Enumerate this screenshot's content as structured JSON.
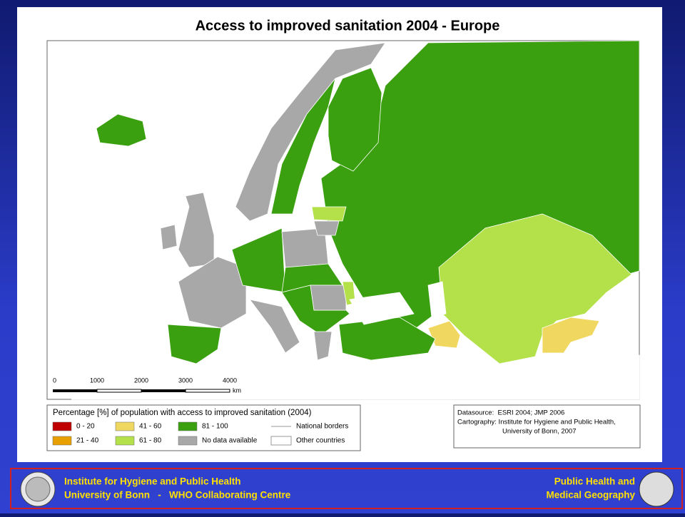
{
  "title": "Access to improved sanitation 2004 - Europe",
  "scale": {
    "labels": [
      "0",
      "1000",
      "2000",
      "3000",
      "4000"
    ],
    "unit": "km"
  },
  "legend": {
    "title": "Percentage [%] of population with access to improved sanitation (2004)",
    "items": [
      {
        "label": "0 - 20",
        "color": "#c00000"
      },
      {
        "label": "21 - 40",
        "color": "#e8a000"
      },
      {
        "label": "41 - 60",
        "color": "#f0d860"
      },
      {
        "label": "61 - 80",
        "color": "#b4e04a"
      },
      {
        "label": "81 - 100",
        "color": "#3aa010"
      },
      {
        "label": "No data available",
        "color": "#a8a8a8"
      }
    ],
    "lines": [
      "National borders",
      "Other countries"
    ]
  },
  "source": [
    "Datasource:  ESRI 2004; JMP 2006",
    "Cartography: Institute for Hygiene and Public Health,",
    "University of Bonn, 2007"
  ],
  "footer": {
    "left": [
      "Institute for Hygiene and Public Health",
      "University of Bonn   -   WHO Collaborating Centre"
    ],
    "right": [
      "Public Health and",
      "Medical Geography"
    ]
  }
}
